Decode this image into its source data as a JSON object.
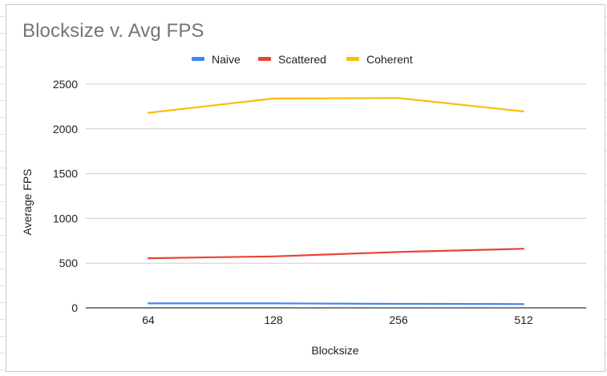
{
  "chart_data": {
    "type": "line",
    "title": "Blocksize v. Avg FPS",
    "xlabel": "Blocksize",
    "ylabel": "Average FPS",
    "categories": [
      "64",
      "128",
      "256",
      "512"
    ],
    "ylim": [
      0,
      2500
    ],
    "yticks": [
      0,
      500,
      1000,
      1500,
      2000,
      2500
    ],
    "grid": true,
    "legend_position": "top",
    "series": [
      {
        "name": "Naive",
        "color": "#4285f4",
        "values": [
          50,
          50,
          45,
          42
        ]
      },
      {
        "name": "Scattered",
        "color": "#ea4335",
        "values": [
          555,
          575,
          625,
          660
        ]
      },
      {
        "name": "Coherent",
        "color": "#fbbc04",
        "values": [
          2180,
          2340,
          2345,
          2195
        ]
      }
    ]
  }
}
